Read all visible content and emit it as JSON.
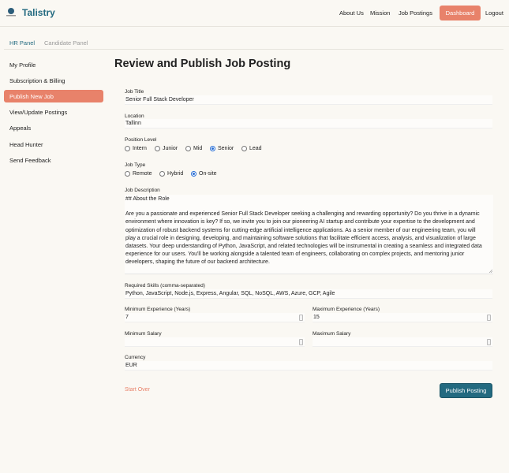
{
  "header": {
    "brand": "Talistry",
    "nav": [
      "About Us",
      "Mission",
      "Job Postings"
    ],
    "dashboard": "Dashboard",
    "logout": "Logout"
  },
  "tabs": {
    "active": "HR Panel",
    "inactive": "Candidate Panel"
  },
  "sidebar": {
    "items": [
      "My Profile",
      "Subscription & Billing",
      "Publish New Job",
      "View/Update Postings",
      "Appeals",
      "Head Hunter",
      "Send Feedback"
    ],
    "active": "Publish New Job"
  },
  "main": {
    "title": "Review and Publish Job Posting"
  },
  "form": {
    "job_title": {
      "label": "Job Title",
      "value": "Senior Full Stack Developer"
    },
    "location": {
      "label": "Location",
      "value": "Tallinn"
    },
    "position_level": {
      "label": "Position Level",
      "options": [
        "Intern",
        "Junior",
        "Mid",
        "Senior",
        "Lead"
      ],
      "selected": "Senior"
    },
    "job_type": {
      "label": "Job Type",
      "options": [
        "Remote",
        "Hybrid",
        "On-site"
      ],
      "selected": "On-site"
    },
    "job_description": {
      "label": "Job Description",
      "heading": "## About the Role",
      "lines": [
        "Are you a passionate and experienced Senior Full Stack Developer seeking a challenging and rewarding opportunity?  Do you thrive in a dynamic",
        "environment where innovation is key?  If so, we invite you to join our pioneering AI startup and contribute your expertise to the development and",
        "optimization of robust backend systems for cutting-edge artificial intelligence applications.  As a senior member of our engineering team, you will",
        "play a crucial role in designing, developing, and maintaining software solutions that facilitate efficient access, analysis, and visualization of large",
        "datasets. Your deep understanding of Python, JavaScript, and related technologies will be instrumental in creating a seamless and integrated data",
        "experience for our users. You'll be working alongside a talented team of engineers, collaborating on complex projects, and mentoring junior",
        "developers, shaping the future of our backend architecture."
      ]
    },
    "skills": {
      "label": "Required Skills (comma-separated)",
      "value": "Python, JavaScript, Node.js, Express, Angular, SQL, NoSQL, AWS, Azure, GCP, Agile"
    },
    "min_experience": {
      "label": "Minimum Experience (Years)",
      "value": "7"
    },
    "max_experience": {
      "label": "Maximum Experience (Years)",
      "value": "15"
    },
    "min_salary": {
      "label": "Minimum Salary"
    },
    "max_salary": {
      "label": "Maximum Salary"
    },
    "currency": {
      "label": "Currency",
      "value": "EUR"
    },
    "start_over": "Start Over",
    "publish": "Publish Posting"
  }
}
